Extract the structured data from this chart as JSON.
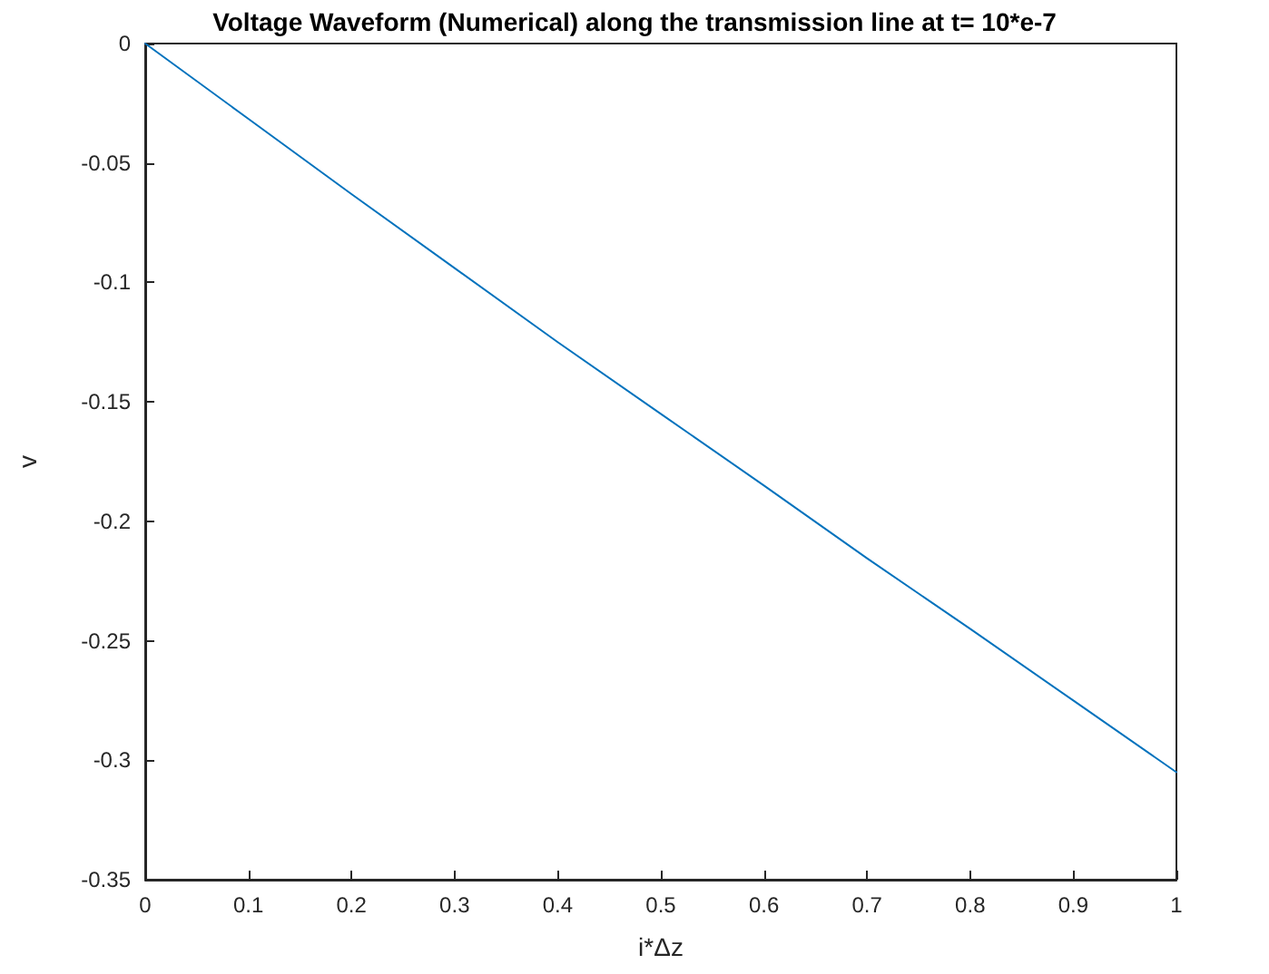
{
  "chart_data": {
    "type": "line",
    "title": "Voltage Waveform (Numerical) along the transmission line at t= 10*e-7",
    "xlabel": "i*Δz",
    "ylabel": "v",
    "x": [
      0,
      0.1,
      0.2,
      0.3,
      0.4,
      0.5,
      0.6,
      0.7,
      0.8,
      0.9,
      1
    ],
    "series": [
      {
        "color": "#0072bd",
        "values": [
          0,
          -0.0315,
          -0.063,
          -0.094,
          -0.125,
          -0.155,
          -0.185,
          -0.2155,
          -0.245,
          -0.275,
          -0.305
        ]
      }
    ],
    "xlim": [
      0,
      1
    ],
    "xticks": [
      0,
      0.1,
      0.2,
      0.3,
      0.4,
      0.5,
      0.6,
      0.7,
      0.8,
      0.9,
      1
    ],
    "ylim": [
      -0.35,
      0
    ],
    "yticks": [
      -0.35,
      -0.3,
      -0.25,
      -0.2,
      -0.15,
      -0.1,
      -0.05,
      0
    ],
    "grid": false,
    "marker": "none",
    "line_style": "solid"
  }
}
